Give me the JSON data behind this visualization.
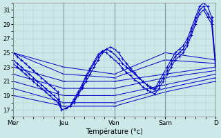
{
  "xlabel": "Température (°c)",
  "background_color": "#cce8e8",
  "grid_color": "#aacccc",
  "line_color": "#0000cc",
  "ylim": [
    16,
    32
  ],
  "yticks": [
    17,
    19,
    21,
    23,
    25,
    27,
    29,
    31
  ],
  "xlim": [
    0,
    200
  ],
  "day_positions": [
    0,
    50,
    100,
    150,
    200
  ],
  "day_labels": [
    "Mer",
    "Jeu",
    "Ven",
    "Sam",
    "D"
  ],
  "series": [
    {
      "x": [
        0,
        4,
        8,
        12,
        16,
        20,
        24,
        28,
        32,
        36,
        40,
        44,
        48,
        52,
        56,
        60,
        64,
        68,
        72,
        76,
        80,
        84,
        88,
        92,
        96,
        100,
        104,
        108,
        112,
        116,
        120,
        124,
        128,
        132,
        136,
        140,
        144,
        148,
        152,
        156,
        160,
        164,
        168,
        172,
        176,
        180,
        184,
        188,
        192,
        196,
        200
      ],
      "y": [
        25,
        24.5,
        24,
        23.5,
        23,
        22.5,
        22,
        21.5,
        21,
        20.5,
        20,
        19.5,
        17,
        17.2,
        17.5,
        18,
        19,
        20,
        21,
        22,
        23,
        24,
        25,
        25.5,
        25.8,
        25.5,
        25,
        24.2,
        23.5,
        22.8,
        22.2,
        21.5,
        21,
        20.5,
        20.2,
        20,
        21,
        22,
        23,
        24,
        25,
        25.5,
        26,
        27,
        28.5,
        30,
        31.5,
        32,
        31.5,
        30,
        23
      ],
      "style": "dotted_marker"
    },
    {
      "x": [
        0,
        4,
        8,
        12,
        16,
        20,
        24,
        28,
        32,
        36,
        40,
        44,
        48,
        52,
        56,
        60,
        64,
        68,
        72,
        76,
        80,
        84,
        88,
        92,
        96,
        100,
        104,
        108,
        112,
        116,
        120,
        124,
        128,
        132,
        136,
        140,
        144,
        148,
        152,
        156,
        160,
        164,
        168,
        172,
        176,
        180,
        184,
        188,
        192,
        196,
        200
      ],
      "y": [
        24,
        23.5,
        23,
        22.5,
        22,
        21.5,
        21,
        20.5,
        20,
        19.5,
        19,
        18.5,
        17,
        17.2,
        17.5,
        18.2,
        19.2,
        20.2,
        21.5,
        22.5,
        23.5,
        24.5,
        25.2,
        25.5,
        25.2,
        24.8,
        24.2,
        23.5,
        23,
        22.5,
        22,
        21.5,
        21,
        20.5,
        20,
        19.8,
        20.5,
        21.5,
        22.5,
        23.5,
        24.5,
        25,
        25.5,
        26.5,
        28,
        29.5,
        31,
        31.5,
        30.5,
        29.5,
        23.2
      ],
      "style": "dotted_marker"
    },
    {
      "x": [
        0,
        4,
        8,
        12,
        16,
        20,
        24,
        28,
        32,
        36,
        40,
        44,
        48,
        52,
        56,
        60,
        64,
        68,
        72,
        76,
        80,
        84,
        88,
        92,
        96,
        100,
        104,
        108,
        112,
        116,
        120,
        124,
        128,
        132,
        136,
        140,
        144,
        148,
        152,
        156,
        160,
        164,
        168,
        172,
        176,
        180,
        184,
        188,
        192,
        196,
        200
      ],
      "y": [
        23.5,
        23,
        22.5,
        22,
        21.5,
        21,
        20.5,
        20,
        19.5,
        19,
        18.5,
        18,
        17,
        17.2,
        17.5,
        18.5,
        19.5,
        20.5,
        21.8,
        22.8,
        23.8,
        24.8,
        25.2,
        25,
        24.5,
        24,
        23.5,
        22.8,
        22.2,
        21.8,
        21.2,
        20.8,
        20.2,
        19.8,
        19.5,
        19.2,
        20,
        21,
        22,
        23,
        24,
        24.5,
        25,
        26,
        27.5,
        29,
        30.5,
        31,
        30,
        29,
        22.5
      ],
      "style": "dotted_marker"
    },
    {
      "x": [
        0,
        50,
        100,
        150,
        200
      ],
      "y": [
        23,
        21,
        21,
        22,
        23
      ],
      "style": "straight"
    },
    {
      "x": [
        0,
        50,
        100,
        150,
        200
      ],
      "y": [
        22,
        20,
        20,
        21.5,
        22.5
      ],
      "style": "straight"
    },
    {
      "x": [
        0,
        50,
        100,
        150,
        200
      ],
      "y": [
        21,
        19,
        19,
        20.5,
        22
      ],
      "style": "straight"
    },
    {
      "x": [
        0,
        50,
        100,
        150,
        200
      ],
      "y": [
        20,
        18,
        18,
        20,
        21.5
      ],
      "style": "straight"
    },
    {
      "x": [
        0,
        50,
        100,
        150,
        200
      ],
      "y": [
        19,
        17.5,
        17.5,
        19.5,
        21
      ],
      "style": "straight"
    },
    {
      "x": [
        0,
        50,
        100,
        150,
        200
      ],
      "y": [
        25,
        23,
        22,
        25,
        24
      ],
      "style": "straight"
    },
    {
      "x": [
        0,
        50,
        100,
        150,
        200
      ],
      "y": [
        25,
        22,
        21.5,
        24,
        23.5
      ],
      "style": "straight"
    }
  ]
}
